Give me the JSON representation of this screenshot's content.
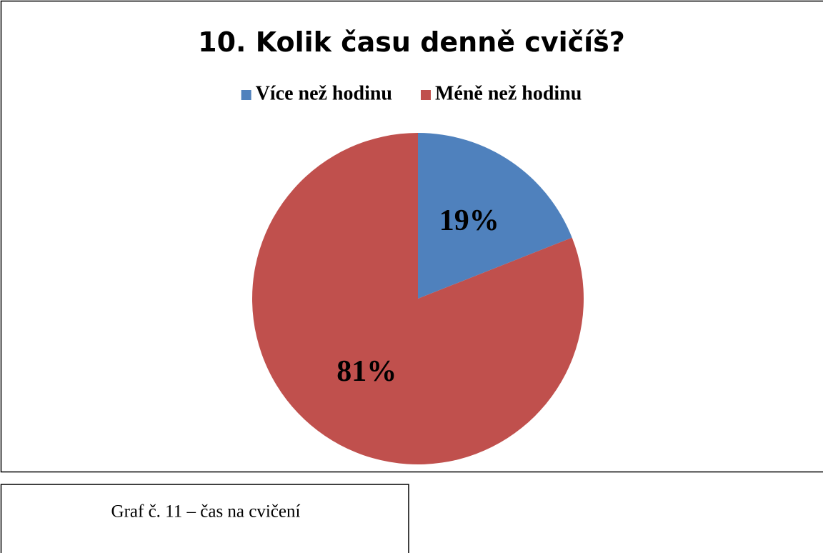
{
  "chart_data": {
    "type": "pie",
    "title": "10. Kolik času denně cvičíš?",
    "categories": [
      "Více než hodinu",
      "Méně než hodinu"
    ],
    "values": [
      19,
      81
    ],
    "value_labels": [
      "19%",
      "81%"
    ],
    "colors": [
      "#4f81bd",
      "#c0504d"
    ],
    "legend": "top"
  },
  "caption": "Graf č. 11 – čas na cvičení"
}
